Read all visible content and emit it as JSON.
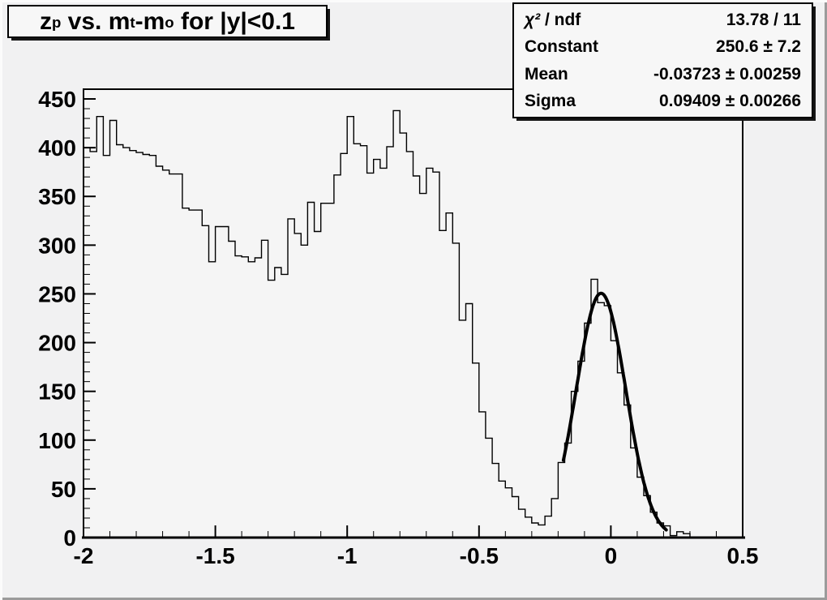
{
  "title": {
    "full": "z_p vs. m_t-m_o for |y|<0.1",
    "parts": [
      {
        "text": "z",
        "sub": false
      },
      {
        "text": "p",
        "sub": true
      },
      {
        "text": " vs. m",
        "sub": false
      },
      {
        "text": "t",
        "sub": true
      },
      {
        "text": "-m",
        "sub": false
      },
      {
        "text": "o",
        "sub": true
      },
      {
        "text": " for |y|<0.1",
        "sub": false
      }
    ]
  },
  "stats": {
    "rows": [
      {
        "label_sym": "χ²",
        "label_rest": " / ndf",
        "value": "13.78 / 11"
      },
      {
        "label_sym": "",
        "label_rest": "Constant",
        "value": "250.6 ± 7.2"
      },
      {
        "label_sym": "",
        "label_rest": "Mean",
        "value": "-0.03723 ± 0.00259"
      },
      {
        "label_sym": "",
        "label_rest": "Sigma",
        "value": "0.09409 ± 0.00266"
      }
    ]
  },
  "colors": {
    "canvas_bg": "#f1f1f2",
    "frame_bg": "#f5f5f5",
    "frame_line": "#000000",
    "hist_line": "#000000",
    "fit_line": "#000000",
    "box_bg": "#f7f7f7",
    "box_border": "#000000",
    "box_shadow": "#161616",
    "bevel_light": "#fbfbfb",
    "bevel_dark": "#9b9b9b"
  },
  "chart_data": {
    "type": "bar",
    "style": "step-histogram",
    "title": "z_p vs. m_t-m_o for |y|<0.1",
    "xlabel": "",
    "ylabel": "",
    "xlim": [
      -2,
      0.5
    ],
    "ylim": [
      0,
      460
    ],
    "grid": false,
    "legend": false,
    "x_major_ticks": [
      -2,
      -1.5,
      -1,
      -0.5,
      0,
      0.5
    ],
    "x_tick_labels": [
      "-2",
      "-1.5",
      "-1",
      "-0.5",
      "0",
      "0.5"
    ],
    "x_minor_step": 0.1,
    "y_major_ticks": [
      0,
      50,
      100,
      150,
      200,
      250,
      300,
      350,
      400,
      450
    ],
    "y_tick_labels": [
      "0",
      "50",
      "100",
      "150",
      "200",
      "250",
      "300",
      "350",
      "400",
      "450"
    ],
    "y_minor_step": 10,
    "bins": {
      "start": -2.0,
      "width": 0.025,
      "values": [
        400,
        396,
        432,
        392,
        428,
        403,
        400,
        397,
        395,
        393,
        392,
        381,
        377,
        373,
        373,
        338,
        336,
        336,
        320,
        283,
        319,
        319,
        304,
        289,
        288,
        283,
        287,
        305,
        264,
        277,
        270,
        327,
        312,
        300,
        344,
        314,
        343,
        343,
        372,
        394,
        432,
        404,
        402,
        374,
        388,
        379,
        401,
        438,
        415,
        396,
        371,
        353,
        379,
        375,
        315,
        333,
        302,
        223,
        240,
        179,
        129,
        102,
        76,
        58,
        51,
        42,
        29,
        21,
        15,
        13,
        22,
        40,
        77,
        97,
        150,
        181,
        220,
        265,
        241,
        238,
        202,
        169,
        136,
        92,
        62,
        43,
        26,
        15,
        12,
        2,
        6,
        4,
        0,
        0,
        0,
        0,
        0,
        0,
        0,
        0
      ]
    },
    "fit": {
      "type": "gaussian",
      "chi2": 13.78,
      "ndf": 11,
      "constant": 250.6,
      "constant_err": 7.2,
      "mean": -0.03723,
      "mean_err": 0.00259,
      "sigma": 0.09409,
      "sigma_err": 0.00266,
      "draw_range": [
        -0.18,
        0.21
      ]
    }
  }
}
